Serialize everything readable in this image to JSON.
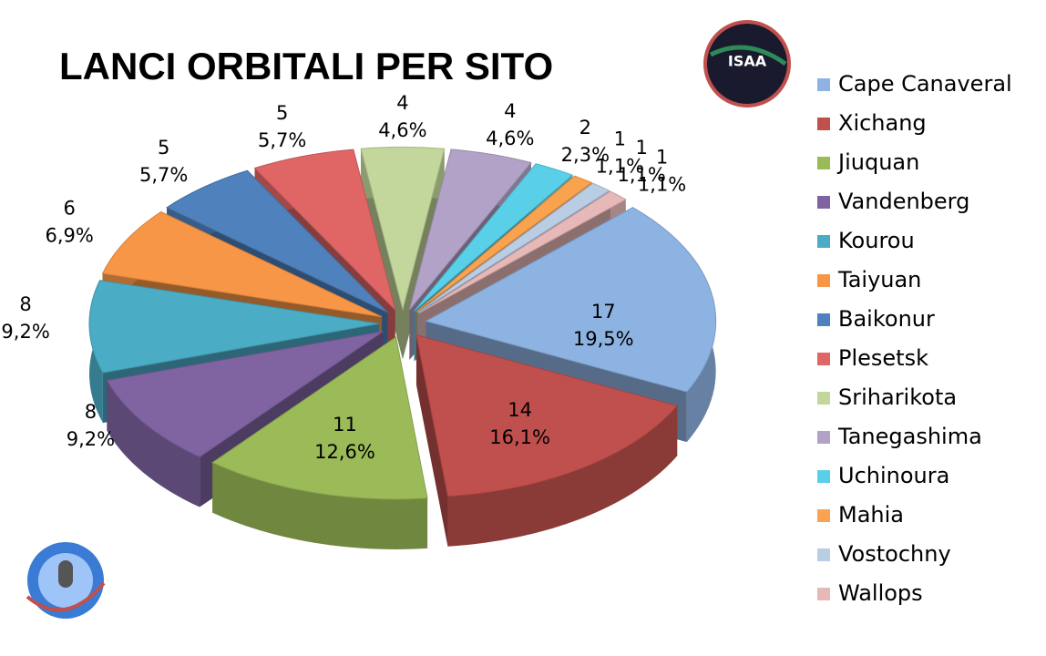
{
  "chart_data": {
    "type": "pie3d",
    "title": "LANCI ORBITALI PER SITO",
    "categories": [
      "Cape Canaveral",
      "Xichang",
      "Jiuquan",
      "Vandenberg",
      "Kourou",
      "Taiyuan",
      "Baikonur",
      "Plesetsk",
      "Sriharikota",
      "Tanegashima",
      "Uchinoura",
      "Mahia",
      "Vostochny",
      "Wallops"
    ],
    "values": [
      17,
      14,
      11,
      8,
      8,
      6,
      5,
      5,
      4,
      4,
      2,
      1,
      1,
      1
    ],
    "percentages": {
      "values": [
        19.5,
        16.1,
        12.6,
        9.2,
        9.2,
        6.9,
        5.7,
        5.7,
        4.6,
        4.6,
        2.3,
        1.1,
        1.1,
        1.1
      ],
      "value_labels": [
        "19,5%",
        "16,1%",
        "12,6%",
        "9,2%",
        "9,2%",
        "6,9%",
        "5,7%",
        "5,7%",
        "4,6%",
        "4,6%",
        "2,3%",
        "1,1%",
        "1,1%",
        "1,1%"
      ]
    },
    "colors": [
      "#8db3e2",
      "#c0504d",
      "#9bbb59",
      "#8064a2",
      "#4bacc6",
      "#f79646",
      "#4f81bd",
      "#e06666",
      "#c3d69b",
      "#b3a2c7",
      "#5ad0e8",
      "#f9a24f",
      "#b9cde5",
      "#e6b9b8"
    ],
    "legend": "right",
    "logo_text": "ISAA"
  }
}
